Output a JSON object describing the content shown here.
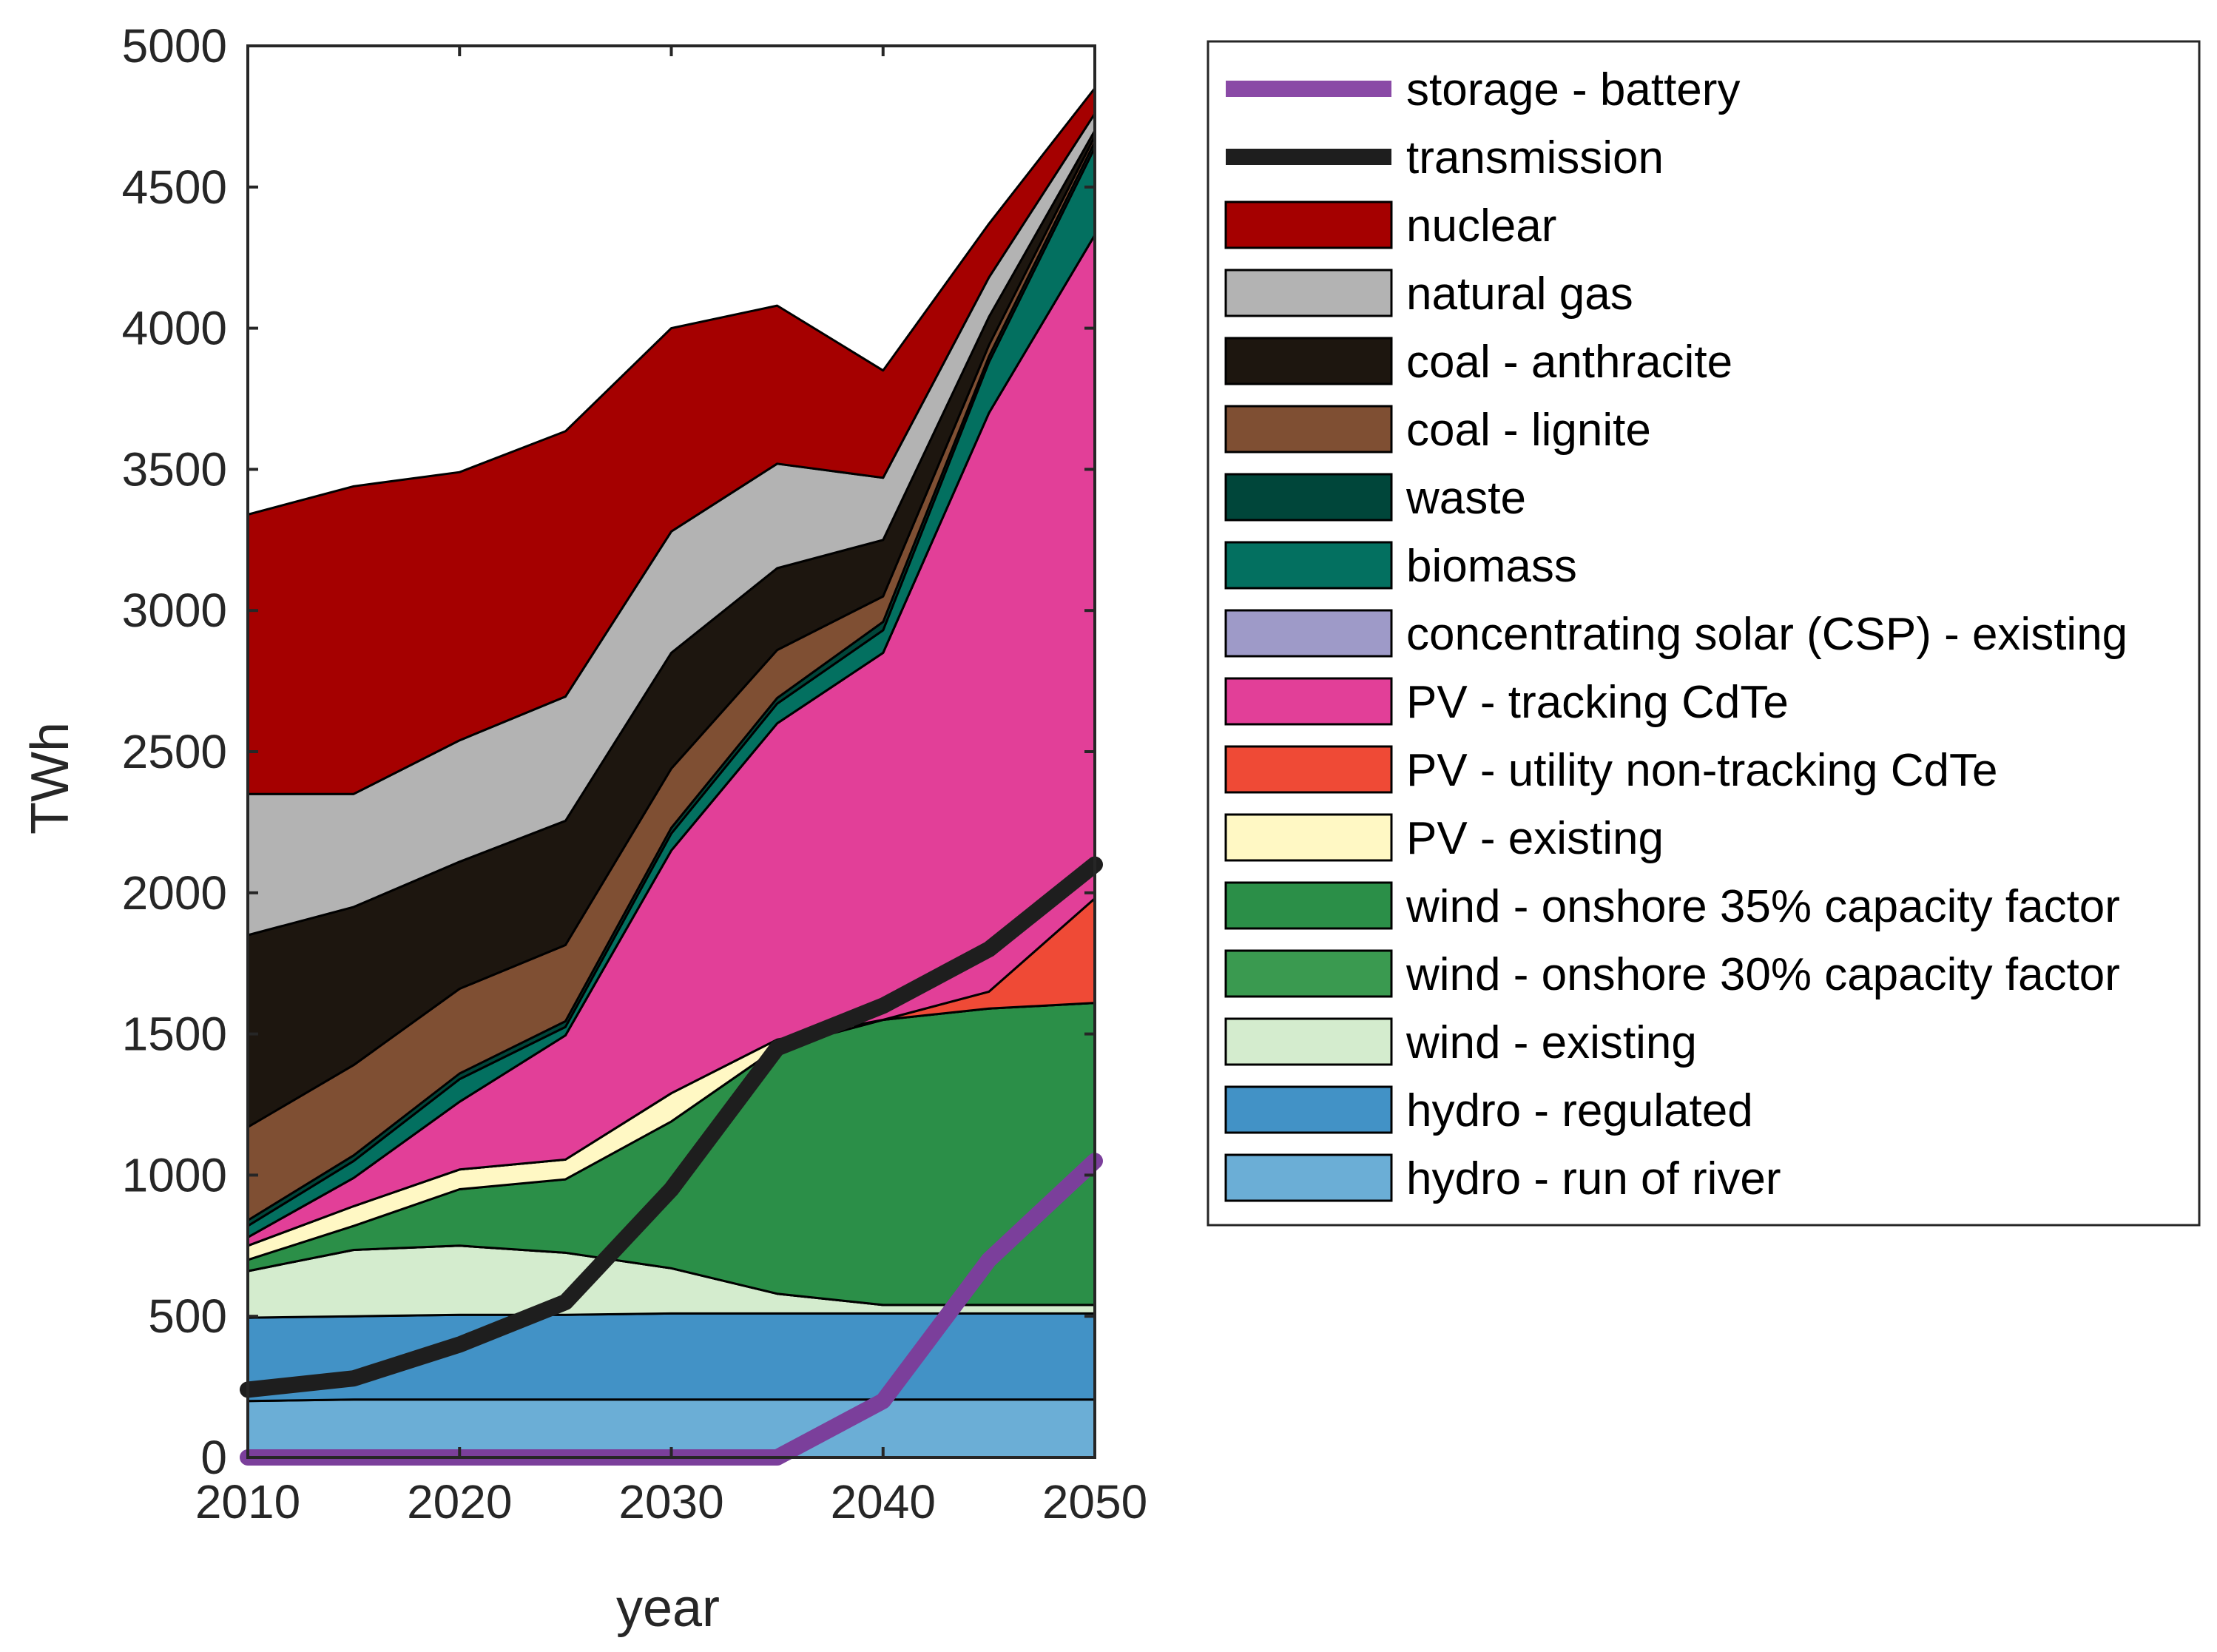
{
  "chart_data": {
    "type": "area",
    "title": "",
    "xlabel": "year",
    "ylabel": "TWh",
    "xlim": [
      2010,
      2050
    ],
    "ylim": [
      0,
      5000
    ],
    "xticks": [
      "2010",
      "2020",
      "2030",
      "2040",
      "2050"
    ],
    "yticks": [
      "0",
      "500",
      "1000",
      "1500",
      "2000",
      "2500",
      "3000",
      "3500",
      "4000",
      "4500",
      "5000"
    ],
    "x": [
      2010,
      2015,
      2020,
      2025,
      2030,
      2035,
      2040,
      2045,
      2050
    ],
    "stack_order_bottom_to_top": [
      "hydro - run of river",
      "hydro - regulated",
      "wind - existing",
      "wind - onshore 30% capacity factor",
      "wind - onshore 35% capacity factor",
      "PV - existing",
      "PV - utility non-tracking CdTe",
      "PV - tracking CdTe",
      "concentrating solar (CSP) - existing",
      "biomass",
      "waste",
      "coal - lignite",
      "coal - anthracite",
      "natural gas",
      "nuclear"
    ],
    "series": [
      {
        "name": "hydro - run of river",
        "color": "#6baed6",
        "values": [
          200,
          205,
          205,
          205,
          205,
          205,
          205,
          205,
          205
        ]
      },
      {
        "name": "hydro - regulated",
        "color": "#4292c6",
        "values": [
          295,
          295,
          300,
          300,
          305,
          305,
          305,
          305,
          305
        ]
      },
      {
        "name": "wind - existing",
        "color": "#d4ecce",
        "values": [
          165,
          235,
          245,
          220,
          160,
          70,
          30,
          30,
          30
        ]
      },
      {
        "name": "wind - onshore 30% capacity factor",
        "color": "#3a9a50",
        "values": [
          0,
          0,
          0,
          0,
          0,
          0,
          0,
          0,
          0
        ]
      },
      {
        "name": "wind - onshore 35% capacity factor",
        "color": "#2b8f48",
        "values": [
          40,
          85,
          200,
          260,
          520,
          870,
          1010,
          1050,
          1070
        ]
      },
      {
        "name": "PV - existing",
        "color": "#fff8c4",
        "values": [
          50,
          70,
          70,
          70,
          100,
          30,
          0,
          0,
          0
        ]
      },
      {
        "name": "PV - utility non-tracking CdTe",
        "color": "#ef4a36",
        "values": [
          0,
          0,
          0,
          0,
          0,
          0,
          0,
          60,
          370
        ]
      },
      {
        "name": "PV - tracking CdTe",
        "color": "#e23f98",
        "values": [
          30,
          100,
          240,
          440,
          860,
          1120,
          1300,
          2050,
          2350
        ]
      },
      {
        "name": "concentrating solar (CSP) - existing",
        "color": "#9e9ac8",
        "values": [
          0,
          0,
          0,
          0,
          0,
          0,
          0,
          0,
          0
        ]
      },
      {
        "name": "biomass",
        "color": "#037060",
        "values": [
          40,
          60,
          80,
          30,
          60,
          70,
          80,
          180,
          310
        ]
      },
      {
        "name": "waste",
        "color": "#00463a",
        "values": [
          20,
          20,
          20,
          20,
          20,
          20,
          30,
          20,
          20
        ]
      },
      {
        "name": "coal - lignite",
        "color": "#7f4f33",
        "values": [
          330,
          320,
          300,
          270,
          210,
          170,
          90,
          40,
          20
        ]
      },
      {
        "name": "coal - anthracite",
        "color": "#1d160f",
        "values": [
          680,
          560,
          450,
          440,
          410,
          290,
          200,
          100,
          20
        ]
      },
      {
        "name": "natural gas",
        "color": "#b3b3b3",
        "values": [
          500,
          400,
          430,
          440,
          430,
          370,
          220,
          140,
          60
        ]
      },
      {
        "name": "nuclear",
        "color": "#a50000",
        "values": [
          990,
          1090,
          950,
          940,
          720,
          560,
          380,
          190,
          90
        ]
      }
    ],
    "lines": [
      {
        "name": "transmission",
        "color": "#1e1e1e",
        "values": [
          240,
          280,
          400,
          550,
          950,
          1450,
          1600,
          1800,
          2100
        ]
      },
      {
        "name": "storage - battery",
        "color": "#7b3f9b",
        "values": [
          0,
          0,
          0,
          0,
          0,
          0,
          200,
          700,
          1050
        ]
      }
    ],
    "legend": {
      "placement": "outside-right",
      "entries": [
        {
          "label": "storage - battery",
          "kind": "line",
          "color": "#8a4aa6"
        },
        {
          "label": "transmission",
          "kind": "line",
          "color": "#1e1e1e"
        },
        {
          "label": "nuclear",
          "kind": "patch",
          "color": "#a50000"
        },
        {
          "label": "natural gas",
          "kind": "patch",
          "color": "#b3b3b3"
        },
        {
          "label": "coal - anthracite",
          "kind": "patch",
          "color": "#1d160f"
        },
        {
          "label": "coal - lignite",
          "kind": "patch",
          "color": "#7f4f33"
        },
        {
          "label": "waste",
          "kind": "patch",
          "color": "#00463a"
        },
        {
          "label": "biomass",
          "kind": "patch",
          "color": "#037060"
        },
        {
          "label": "concentrating solar (CSP) - existing",
          "kind": "patch",
          "color": "#9e9ac8"
        },
        {
          "label": "PV - tracking CdTe",
          "kind": "patch",
          "color": "#e23f98"
        },
        {
          "label": "PV - utility non-tracking CdTe",
          "kind": "patch",
          "color": "#ef4a36"
        },
        {
          "label": "PV - existing",
          "kind": "patch",
          "color": "#fff8c4"
        },
        {
          "label": "wind - onshore 35% capacity factor",
          "kind": "patch",
          "color": "#2b8f48"
        },
        {
          "label": "wind - onshore 30% capacity factor",
          "kind": "patch",
          "color": "#3a9a50"
        },
        {
          "label": "wind - existing",
          "kind": "patch",
          "color": "#d4ecce"
        },
        {
          "label": "hydro - regulated",
          "kind": "patch",
          "color": "#4292c6"
        },
        {
          "label": "hydro - run of river",
          "kind": "patch",
          "color": "#6baed6"
        }
      ]
    }
  }
}
